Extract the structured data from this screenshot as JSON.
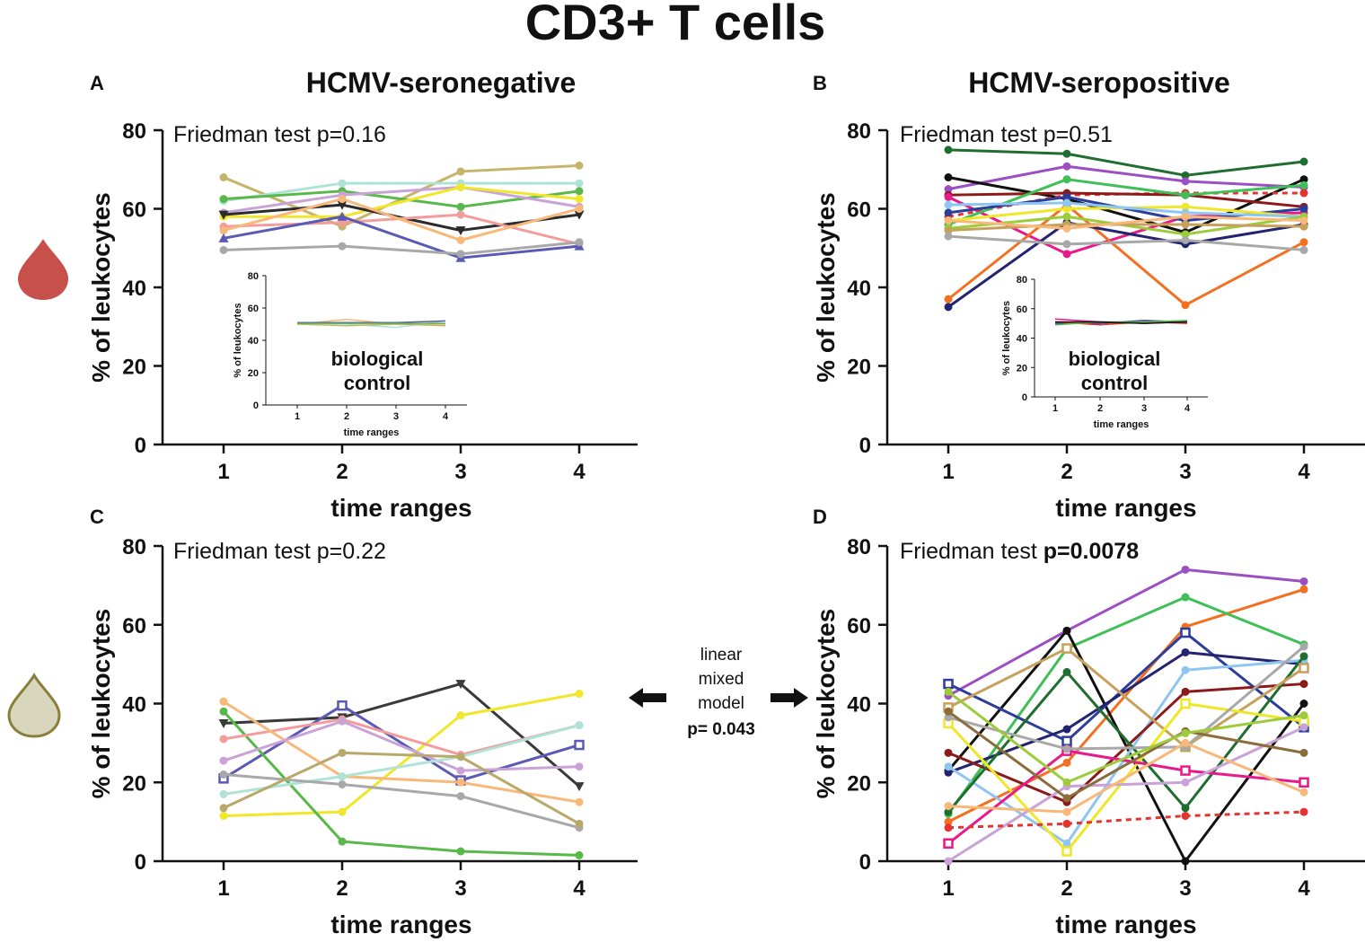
{
  "figure": {
    "title": "CD3+ T cells",
    "colors": {
      "drop_blood": "#c8504b",
      "drop_other": "#d9d6be",
      "drop_other_stroke": "#8a7f3a"
    },
    "middle_annotation": {
      "line1": "linear",
      "line2": "mixed",
      "line3": "model",
      "pvalue": "p= 0.043"
    }
  },
  "chart_data": [
    {
      "id": "A",
      "type": "line",
      "panel_letter": "A",
      "title": "HCMV-seronegative",
      "annotation_prefix": "Friedman test ",
      "annotation_p": "p=0.16",
      "annotation_bold": false,
      "xlabel": "time ranges",
      "ylabel": "% of leukocytes",
      "categories": [
        "1",
        "2",
        "3",
        "4"
      ],
      "yticks": [
        "0",
        "20",
        "40",
        "60",
        "80"
      ],
      "ylim": [
        0,
        80
      ],
      "series": [
        {
          "name": "s1",
          "color": "#c6b46b",
          "marker": "circle",
          "values": [
            68,
            55.5,
            69.5,
            71
          ]
        },
        {
          "name": "s2",
          "color": "#aee3d6",
          "marker": "circle",
          "values": [
            62,
            66.5,
            66.5,
            66.5
          ]
        },
        {
          "name": "s3",
          "color": "#59b84a",
          "marker": "circle",
          "values": [
            62.5,
            64.5,
            60.5,
            64.5
          ]
        },
        {
          "name": "s4",
          "color": "#c9a2d8",
          "marker": "circle",
          "values": [
            59,
            63.5,
            65.5,
            60.5
          ]
        },
        {
          "name": "s5",
          "color": "#f0e62a",
          "marker": "circle",
          "values": [
            58,
            58,
            65.5,
            62.5
          ]
        },
        {
          "name": "s6",
          "color": "#2b2b2b",
          "marker": "triangle-down",
          "values": [
            58.5,
            61,
            54.5,
            58.5
          ]
        },
        {
          "name": "s7",
          "color": "#f39c9c",
          "marker": "circle",
          "values": [
            55.5,
            56.5,
            58.5,
            51
          ]
        },
        {
          "name": "s8",
          "color": "#f7b87a",
          "marker": "circle",
          "values": [
            54.5,
            62.5,
            52,
            60
          ]
        },
        {
          "name": "s9",
          "color": "#5a5ab4",
          "marker": "triangle",
          "values": [
            52.5,
            58,
            47.5,
            50.5
          ]
        },
        {
          "name": "s10",
          "color": "#a8a8a8",
          "marker": "circle",
          "values": [
            49.5,
            50.5,
            48.5,
            51.5
          ]
        }
      ],
      "inset": {
        "xlabel": "time ranges",
        "ylabel": "% of leukocytes",
        "categories": [
          "1",
          "2",
          "3",
          "4"
        ],
        "yticks": [
          "0",
          "20",
          "40",
          "60",
          "80"
        ],
        "ylim": [
          0,
          80
        ],
        "label_line1": "biological",
        "label_line2": "control",
        "series": [
          {
            "name": "c1",
            "color": "#f7b87a",
            "values": [
              50,
              53,
              50,
              50
            ]
          },
          {
            "name": "c2",
            "color": "#aee3d6",
            "values": [
              51,
              50,
              48,
              52
            ]
          },
          {
            "name": "c3",
            "color": "#5a5ab4",
            "values": [
              51,
              51,
              51,
              52
            ]
          },
          {
            "name": "c4",
            "color": "#c6b46b",
            "values": [
              50,
              49,
              50,
              49
            ]
          },
          {
            "name": "c5",
            "color": "#59b84a",
            "values": [
              50.5,
              50.5,
              50.5,
              50.5
            ]
          }
        ]
      }
    },
    {
      "id": "B",
      "type": "line",
      "panel_letter": "B",
      "title": "HCMV-seropositive",
      "annotation_prefix": "Friedman test ",
      "annotation_p": "p=0.51",
      "annotation_bold": false,
      "xlabel": "time ranges",
      "ylabel": "% of leukocytes",
      "categories": [
        "1",
        "2",
        "3",
        "4"
      ],
      "yticks": [
        "0",
        "20",
        "40",
        "60",
        "80"
      ],
      "ylim": [
        0,
        80
      ],
      "series": [
        {
          "name": "s1",
          "color": "#1f6e2f",
          "marker": "circle",
          "values": [
            75,
            74,
            68.5,
            72
          ]
        },
        {
          "name": "s2",
          "color": "#9b4fc2",
          "marker": "circle",
          "values": [
            65,
            70.8,
            67,
            65.5
          ]
        },
        {
          "name": "s3",
          "color": "#111111",
          "marker": "circle",
          "values": [
            68,
            62.5,
            54,
            67.5
          ]
        },
        {
          "name": "s4",
          "color": "#e3342f",
          "marker": "circle",
          "values": [
            58,
            63.5,
            64,
            64
          ],
          "dashed": true
        },
        {
          "name": "s5",
          "color": "#8b1a1a",
          "marker": "circle",
          "values": [
            63.5,
            64,
            63.5,
            60.5
          ]
        },
        {
          "name": "s6",
          "color": "#e8198b",
          "marker": "circle",
          "values": [
            63,
            48.5,
            58,
            59
          ]
        },
        {
          "name": "s7",
          "color": "#3ebf57",
          "marker": "circle",
          "values": [
            56,
            67.5,
            63.5,
            66
          ]
        },
        {
          "name": "s8",
          "color": "#2c3e9c",
          "marker": "circle",
          "values": [
            59,
            63,
            57,
            60
          ]
        },
        {
          "name": "s9",
          "color": "#f37021",
          "marker": "circle",
          "values": [
            37,
            61,
            35.5,
            51.5
          ]
        },
        {
          "name": "s10",
          "color": "#24236f",
          "marker": "circle",
          "values": [
            35,
            56.5,
            51,
            56
          ]
        },
        {
          "name": "s11",
          "color": "#f0e62a",
          "marker": "circle",
          "values": [
            57,
            60,
            60.5,
            58
          ]
        },
        {
          "name": "s12",
          "color": "#8ec6f0",
          "marker": "circle",
          "values": [
            61,
            61.5,
            59,
            58
          ]
        },
        {
          "name": "s13",
          "color": "#9ccc3c",
          "marker": "circle",
          "values": [
            55,
            58,
            53.5,
            58
          ]
        },
        {
          "name": "s14",
          "color": "#c6a15b",
          "marker": "circle",
          "values": [
            54.5,
            56,
            56,
            55.5
          ]
        },
        {
          "name": "s15",
          "color": "#f7b87a",
          "marker": "circle",
          "values": [
            57,
            55,
            58,
            57
          ]
        },
        {
          "name": "s16",
          "color": "#a8a8a8",
          "marker": "circle",
          "values": [
            53,
            51,
            52,
            49.5
          ]
        }
      ],
      "inset": {
        "xlabel": "time ranges",
        "ylabel": "% of leukocytes",
        "categories": [
          "1",
          "2",
          "3",
          "4"
        ],
        "yticks": [
          "0",
          "20",
          "40",
          "60",
          "80"
        ],
        "ylim": [
          0,
          80
        ],
        "label_line1": "biological",
        "label_line2": "control",
        "series": [
          {
            "name": "c1",
            "color": "#e8198b",
            "values": [
              53,
              51,
              50,
              51
            ]
          },
          {
            "name": "c2",
            "color": "#2c3e9c",
            "values": [
              50,
              50,
              52,
              51
            ]
          },
          {
            "name": "c3",
            "color": "#e3342f",
            "values": [
              51,
              49,
              51,
              50
            ]
          },
          {
            "name": "c4",
            "color": "#59b84a",
            "values": [
              49,
              51,
              51,
              52
            ]
          },
          {
            "name": "c5",
            "color": "#111111",
            "values": [
              51,
              51,
              50,
              51
            ]
          }
        ]
      }
    },
    {
      "id": "C",
      "type": "line",
      "panel_letter": "C",
      "title": "",
      "annotation_prefix": "Friedman test ",
      "annotation_p": "p=0.22",
      "annotation_bold": false,
      "xlabel": "time ranges",
      "ylabel": "% of leukocytes",
      "categories": [
        "1",
        "2",
        "3",
        "4"
      ],
      "yticks": [
        "0",
        "20",
        "40",
        "60",
        "80"
      ],
      "ylim": [
        0,
        80
      ],
      "series": [
        {
          "name": "s1",
          "color": "#3a3a3a",
          "marker": "triangle-down",
          "values": [
            35,
            36.5,
            45,
            19
          ]
        },
        {
          "name": "s2",
          "color": "#f0e62a",
          "marker": "circle",
          "values": [
            11.5,
            12.5,
            37,
            42.5
          ]
        },
        {
          "name": "s3",
          "color": "#5a5ab4",
          "marker": "square",
          "values": [
            21,
            39.5,
            20.5,
            29.5
          ]
        },
        {
          "name": "s4",
          "color": "#59b84a",
          "marker": "circle",
          "values": [
            38,
            5,
            2.5,
            1.5
          ]
        },
        {
          "name": "s5",
          "color": "#f39c9c",
          "marker": "circle",
          "values": [
            31,
            36,
            27,
            34.5
          ]
        },
        {
          "name": "s6",
          "color": "#f7b87a",
          "marker": "circle",
          "values": [
            40.5,
            21.5,
            20,
            15
          ]
        },
        {
          "name": "s7",
          "color": "#c9a2d8",
          "marker": "circle",
          "values": [
            25.5,
            35.5,
            23,
            24
          ]
        },
        {
          "name": "s8",
          "color": "#aee3d6",
          "marker": "circle",
          "values": [
            17,
            21.5,
            26.5,
            34.5
          ]
        },
        {
          "name": "s9",
          "color": "#a8a8a8",
          "marker": "circle",
          "values": [
            22,
            19.5,
            16.5,
            8.5
          ]
        },
        {
          "name": "s10",
          "color": "#b9a86a",
          "marker": "circle",
          "values": [
            13.5,
            27.5,
            26.5,
            9.5
          ]
        }
      ]
    },
    {
      "id": "D",
      "type": "line",
      "panel_letter": "D",
      "title": "",
      "annotation_prefix": "Friedman test ",
      "annotation_p": "p=0.0078",
      "annotation_bold": true,
      "xlabel": "time ranges",
      "ylabel": "% of leukocytes",
      "categories": [
        "1",
        "2",
        "3",
        "4"
      ],
      "yticks": [
        "0",
        "20",
        "40",
        "60",
        "80"
      ],
      "ylim": [
        0,
        80
      ],
      "series": [
        {
          "name": "s1",
          "color": "#9b4fc2",
          "marker": "circle",
          "values": [
            42,
            58.5,
            74,
            71
          ]
        },
        {
          "name": "s2",
          "color": "#f37021",
          "marker": "circle",
          "values": [
            10,
            25,
            59.5,
            69
          ]
        },
        {
          "name": "s3",
          "color": "#3ebf57",
          "marker": "circle",
          "values": [
            12,
            54,
            67,
            55
          ]
        },
        {
          "name": "s4",
          "color": "#111111",
          "marker": "circle",
          "values": [
            23,
            58.5,
            0,
            40
          ]
        },
        {
          "name": "s5",
          "color": "#2c3e9c",
          "marker": "square",
          "values": [
            45,
            30.5,
            58,
            34
          ]
        },
        {
          "name": "s6",
          "color": "#24236f",
          "marker": "circle",
          "values": [
            22.5,
            33.5,
            53,
            50
          ]
        },
        {
          "name": "s7",
          "color": "#8ec6f0",
          "marker": "circle",
          "values": [
            24,
            4.5,
            48.5,
            51
          ]
        },
        {
          "name": "s8",
          "color": "#8b1a1a",
          "marker": "circle",
          "values": [
            27.5,
            15,
            43,
            45
          ]
        },
        {
          "name": "s9",
          "color": "#1f6e2f",
          "marker": "circle",
          "values": [
            12.5,
            48,
            13.5,
            52
          ]
        },
        {
          "name": "s10",
          "color": "#c6a15b",
          "marker": "square",
          "values": [
            39,
            54,
            29,
            49
          ]
        },
        {
          "name": "s11",
          "color": "#f0e62a",
          "marker": "square",
          "values": [
            35,
            2.5,
            40,
            35.5
          ]
        },
        {
          "name": "s12",
          "color": "#e8198b",
          "marker": "square",
          "values": [
            4.5,
            28,
            23,
            20
          ]
        },
        {
          "name": "s13",
          "color": "#a8a8a8",
          "marker": "circle",
          "values": [
            36.5,
            28.5,
            29,
            54.5
          ]
        },
        {
          "name": "s14",
          "color": "#c9a2d8",
          "marker": "circle",
          "values": [
            0,
            19,
            20,
            34
          ]
        },
        {
          "name": "s15",
          "color": "#8a6d3b",
          "marker": "circle",
          "values": [
            38,
            16,
            33,
            27.5
          ]
        },
        {
          "name": "s16",
          "color": "#f7b87a",
          "marker": "circle",
          "values": [
            14,
            12.5,
            30,
            17.5
          ]
        },
        {
          "name": "s17",
          "color": "#9ccc3c",
          "marker": "circle",
          "values": [
            43,
            20,
            32.5,
            37
          ]
        },
        {
          "name": "s18",
          "color": "#e3342f",
          "marker": "circle",
          "values": [
            8.5,
            9.5,
            11.5,
            12.5
          ],
          "dashed": true
        }
      ]
    }
  ]
}
